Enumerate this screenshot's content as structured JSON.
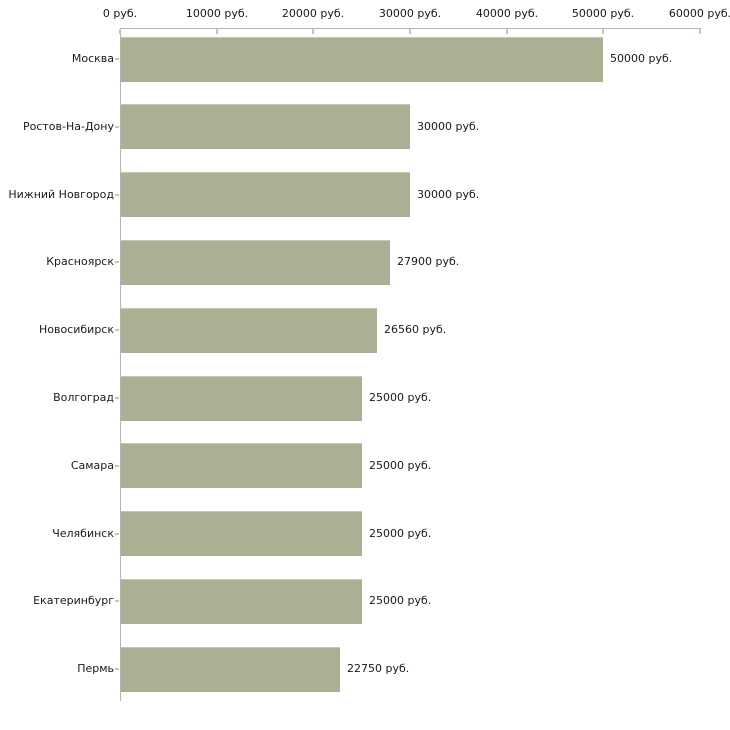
{
  "chart_data": {
    "type": "bar",
    "orientation": "horizontal",
    "title": "",
    "xlabel": "",
    "ylabel": "",
    "categories": [
      "Москва",
      "Ростов-На-Дону",
      "Нижний Новгород",
      "Красноярск",
      "Новосибирск",
      "Волгоград",
      "Самара",
      "Челябинск",
      "Екатеринбург",
      "Пермь"
    ],
    "values": [
      50000,
      30000,
      30000,
      27900,
      26560,
      25000,
      25000,
      25000,
      25000,
      22750
    ],
    "value_labels": [
      "50000 руб.",
      "30000 руб.",
      "30000 руб.",
      "27900 руб.",
      "26560 руб.",
      "25000 руб.",
      "25000 руб.",
      "25000 руб.",
      "25000 руб.",
      "22750 руб."
    ],
    "unit": "руб.",
    "xlim": [
      0,
      60000
    ],
    "x_ticks": [
      0,
      10000,
      20000,
      30000,
      40000,
      50000,
      60000
    ],
    "x_tick_labels": [
      "0 руб.",
      "10000 руб.",
      "20000 руб.",
      "30000 руб.",
      "40000 руб.",
      "50000 руб.",
      "60000 руб."
    ],
    "axis_position": "top",
    "grid": false,
    "legend": false,
    "colors": {
      "bar_fill": "#a9b094",
      "bar_top_edge": "#c6c9b1",
      "axis_line": "#b4b4b4",
      "tick_mark": "#c9c9a6",
      "label_text": "#1a1a1a",
      "background": "#ffffff"
    }
  }
}
